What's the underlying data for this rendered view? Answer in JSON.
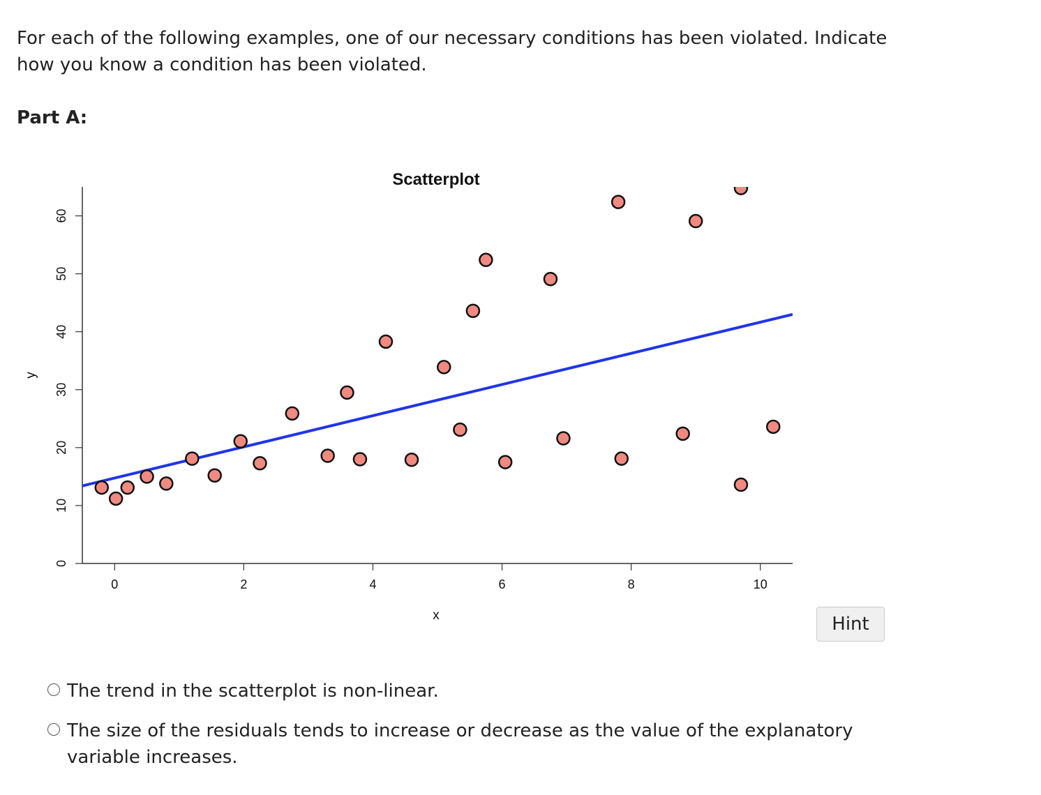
{
  "question": {
    "prompt": "For each of the following examples, one of our necessary conditions has been violated. Indicate how you know a condition has been violated.",
    "part_label": "Part A:"
  },
  "hint_label": "Hint",
  "options": [
    {
      "label": "The trend in the scatterplot is non-linear."
    },
    {
      "label": "The size of the residuals tends to increase or decrease as the value of the explanatory variable increases."
    }
  ],
  "colors": {
    "point_fill": "#f08a80",
    "point_stroke": "#111111",
    "regression_line": "#1f35e8",
    "axis": "#333333"
  },
  "chart_data": {
    "type": "scatter",
    "title": "Scatterplot",
    "xlabel": "x",
    "ylabel": "y",
    "xlim": [
      -0.5,
      10.5
    ],
    "ylim": [
      0,
      65
    ],
    "xticks": [
      0,
      2,
      4,
      6,
      8,
      10
    ],
    "yticks": [
      0,
      10,
      20,
      30,
      40,
      50,
      60
    ],
    "grid": false,
    "points": [
      {
        "x": -0.2,
        "y": 13.1
      },
      {
        "x": 0.02,
        "y": 11.2
      },
      {
        "x": 0.2,
        "y": 13.1
      },
      {
        "x": 0.5,
        "y": 15.0
      },
      {
        "x": 0.8,
        "y": 13.8
      },
      {
        "x": 1.2,
        "y": 18.1
      },
      {
        "x": 1.55,
        "y": 15.2
      },
      {
        "x": 1.95,
        "y": 21.1
      },
      {
        "x": 2.25,
        "y": 17.3
      },
      {
        "x": 2.75,
        "y": 25.9
      },
      {
        "x": 3.3,
        "y": 18.6
      },
      {
        "x": 3.6,
        "y": 29.5
      },
      {
        "x": 3.8,
        "y": 18.0
      },
      {
        "x": 4.2,
        "y": 38.3
      },
      {
        "x": 4.6,
        "y": 17.9
      },
      {
        "x": 5.1,
        "y": 33.9
      },
      {
        "x": 5.35,
        "y": 23.1
      },
      {
        "x": 5.55,
        "y": 43.6
      },
      {
        "x": 5.75,
        "y": 52.4
      },
      {
        "x": 6.05,
        "y": 17.5
      },
      {
        "x": 6.75,
        "y": 49.1
      },
      {
        "x": 6.95,
        "y": 21.6
      },
      {
        "x": 7.8,
        "y": 62.4
      },
      {
        "x": 7.85,
        "y": 18.1
      },
      {
        "x": 8.8,
        "y": 22.4
      },
      {
        "x": 9.0,
        "y": 59.1
      },
      {
        "x": 9.7,
        "y": 64.8
      },
      {
        "x": 9.7,
        "y": 13.6
      },
      {
        "x": 10.2,
        "y": 23.6
      }
    ],
    "regression_line": {
      "x": [
        -0.5,
        10.5
      ],
      "y": [
        13.4,
        43.0
      ]
    }
  }
}
